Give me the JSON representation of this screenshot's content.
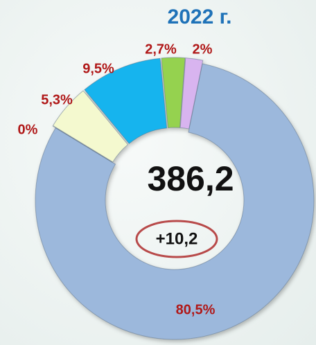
{
  "chart_data": {
    "type": "donut",
    "title": "2022 г.",
    "center_label": "386,2",
    "annotation": "+10,2",
    "categories": [
      null,
      null,
      null,
      null,
      null,
      null
    ],
    "values": [
      80.5,
      0,
      5.3,
      9.5,
      2.7,
      2
    ],
    "value_labels": [
      "80,5%",
      "0%",
      "5,3%",
      "9,5%",
      "2,7%",
      "2%"
    ],
    "colors": [
      "#9cb8dc",
      "#f0ca9a",
      "#f4f9cf",
      "#12b4ee",
      "#95d24f",
      "#d8b4ef"
    ]
  }
}
